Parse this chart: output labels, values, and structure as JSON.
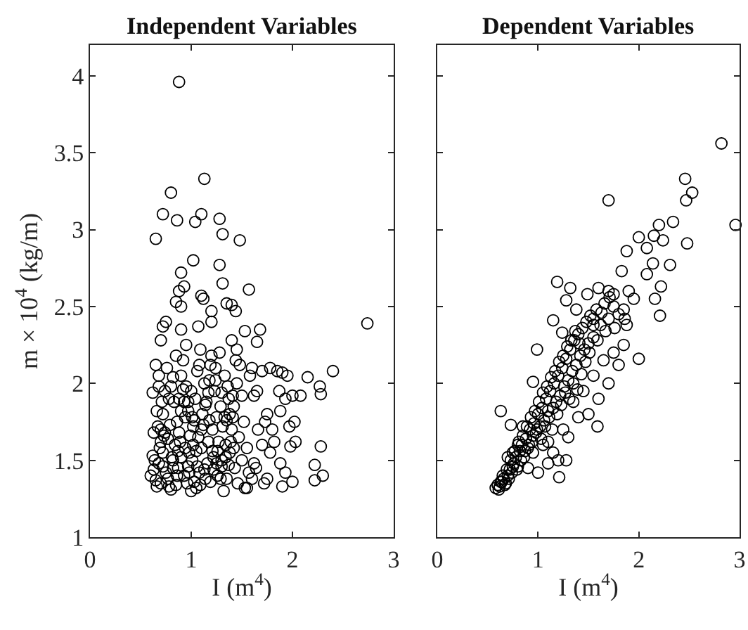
{
  "chart_data": [
    {
      "type": "scatter",
      "title": "Independent Variables",
      "xlabel": "I (m$^{4}$)",
      "ylabel": "m × 10$^{4}$ (kg/m)",
      "xlim": [
        0,
        3
      ],
      "xticks": [
        0,
        1,
        2,
        3
      ],
      "ylim": [
        1,
        4.2
      ],
      "yticks": [
        1,
        1.5,
        2,
        2.5,
        3,
        3.5,
        4
      ],
      "marker": "circle",
      "series": [
        {
          "color": "#000000",
          "x": [
            0.64,
            0.69,
            0.73,
            0.77,
            0.81,
            0.85,
            0.89,
            0.93,
            0.97,
            1.01,
            1.05,
            1.09,
            1.13,
            1.17,
            1.21,
            1.25,
            1.29,
            1.33,
            1.37,
            0.66,
            0.7,
            0.74,
            0.78,
            0.82,
            0.86,
            0.9,
            0.94,
            0.98,
            1.02,
            1.06,
            1.1,
            1.14,
            1.18,
            1.22,
            1.26,
            1.3,
            1.34,
            1.38,
            1.42,
            0.63,
            0.68,
            0.72,
            0.77,
            0.82,
            0.87,
            0.92,
            0.97,
            1.03,
            1.08,
            1.14,
            1.19,
            1.24,
            1.3,
            1.35,
            1.41,
            0.6,
            0.62,
            0.63,
            0.65,
            0.66,
            0.68,
            0.7,
            0.72,
            0.74,
            0.62,
            0.65,
            0.68,
            0.7,
            0.72,
            0.75,
            0.78,
            0.8,
            0.82,
            0.84,
            0.86,
            0.88,
            0.9,
            0.92,
            0.95,
            0.97,
            0.99,
            1.01,
            1.03,
            1.0,
            1.05,
            1.08,
            1.1,
            1.12,
            1.15,
            1.18,
            1.2,
            1.23,
            1.25,
            1.27,
            1.3,
            1.32,
            1.35,
            1.38,
            1.4,
            1.42,
            1.45,
            1.48,
            1.5,
            1.52,
            1.55,
            1.57,
            1.53,
            1.6,
            0.76,
            0.8,
            0.83,
            0.85,
            0.88,
            0.9,
            0.93,
            0.96,
            0.98,
            1.02,
            1.04,
            1.06,
            1.09,
            1.13,
            1.16,
            1.19,
            1.22,
            1.26,
            1.29,
            1.33,
            1.36,
            1.39,
            1.43,
            1.46,
            0.67,
            0.71,
            0.79,
            0.87,
            0.94,
            1.0,
            1.07,
            1.11,
            1.17,
            1.21,
            1.24,
            1.28,
            1.31,
            1.34,
            1.37,
            1.41,
            1.44,
            1.47,
            1.5,
            1.58,
            1.62,
            1.66,
            1.64,
            0.88,
            1.13,
            0.8,
            0.72,
            0.86,
            1.1,
            1.04,
            1.28,
            1.31,
            0.65,
            1.48,
            1.02,
            1.28,
            0.9,
            1.31,
            1.57,
            0.93,
            0.88,
            1.1,
            1.12,
            0.85,
            0.9,
            1.2,
            1.35,
            1.4,
            1.44,
            2.74,
            0.75,
            0.72,
            1.07,
            1.68,
            1.53,
            0.9,
            1.2,
            1.65,
            0.7,
            0.95,
            1.4,
            1.45,
            2.4,
            2.15,
            2.27,
            2.28,
            2.08,
            2.0,
            1.93,
            1.78,
            1.85,
            1.9,
            1.95,
            1.7,
            1.6,
            1.65,
            1.87,
            2.02,
            1.97,
            1.88,
            1.75,
            1.73,
            1.8,
            2.03,
            2.28,
            1.98,
            2.22,
            1.88,
            1.93,
            2.22,
            2.3,
            2.0,
            1.9,
            1.75,
            1.72,
            1.55,
            1.78,
            1.82,
            1.7,
            1.62
          ],
          "values": [
            1.5,
            1.58,
            1.66,
            1.38,
            1.52,
            1.34,
            1.62,
            1.88,
            1.46,
            1.78,
            1.56,
            1.34,
            1.44,
            1.94,
            1.56,
            1.48,
            1.38,
            1.78,
            1.47,
            1.82,
            1.35,
            1.68,
            1.9,
            1.5,
            1.4,
            1.82,
            1.58,
            1.42,
            1.6,
            1.46,
            1.7,
            1.38,
            1.76,
            1.44,
            1.56,
            1.94,
            1.52,
            1.8,
            1.58,
            1.68,
            1.98,
            1.46,
            1.64,
            2.04,
            1.56,
            1.96,
            1.88,
            1.76,
            2.12,
            1.86,
            2.12,
            2.02,
            1.5,
            1.76,
            1.92,
            1.4,
            1.53,
            1.44,
            1.37,
            1.33,
            1.48,
            1.62,
            1.8,
            1.95,
            1.94,
            2.12,
            2.05,
            1.7,
            1.55,
            1.42,
            1.33,
            1.31,
            1.45,
            1.6,
            1.75,
            1.9,
            2.05,
            2.15,
            1.98,
            1.82,
            1.66,
            1.5,
            1.36,
            1.3,
            1.32,
            1.42,
            1.58,
            1.73,
            1.88,
            2.02,
            2.18,
            1.95,
            1.78,
            1.62,
            1.46,
            1.3,
            1.38,
            1.55,
            1.7,
            1.85,
            2.0,
            2.12,
            1.92,
            1.75,
            1.58,
            1.42,
            1.32,
            1.38,
            2.1,
            1.98,
            1.88,
            2.18,
            1.68,
            1.52,
            1.4,
            1.35,
            1.55,
            1.72,
            1.9,
            2.08,
            2.22,
            2.0,
            1.48,
            1.36,
            1.52,
            1.4,
            1.85,
            2.05,
            1.98,
            1.62,
            1.45,
            1.35,
            1.72,
            1.88,
            1.73,
            1.45,
            1.78,
            1.95,
            1.65,
            1.8,
            1.62,
            1.7,
            2.1,
            2.2,
            1.72,
            1.6,
            1.9,
            1.78,
            2.15,
            1.65,
            1.5,
            2.05,
            1.92,
            1.7,
            1.45,
            3.96,
            3.33,
            3.24,
            3.1,
            3.06,
            3.1,
            3.05,
            3.07,
            2.97,
            2.94,
            2.93,
            2.8,
            2.77,
            2.72,
            2.65,
            2.61,
            2.63,
            2.6,
            2.57,
            2.55,
            2.53,
            2.5,
            2.47,
            2.52,
            2.51,
            2.47,
            2.39,
            2.4,
            2.37,
            2.37,
            2.35,
            2.34,
            2.35,
            2.4,
            2.27,
            2.28,
            2.25,
            2.28,
            2.22,
            2.08,
            2.04,
            1.98,
            1.93,
            1.92,
            1.92,
            1.9,
            2.1,
            2.08,
            2.07,
            2.05,
            2.08,
            2.1,
            1.95,
            1.95,
            1.75,
            1.72,
            1.82,
            1.8,
            1.75,
            1.7,
            1.62,
            1.59,
            1.59,
            1.47,
            1.48,
            1.42,
            1.37,
            1.4,
            1.36,
            1.33,
            1.38,
            1.35,
            1.32,
            1.55,
            1.62,
            1.6,
            1.48
          ]
        }
      ]
    },
    {
      "type": "scatter",
      "title": "Dependent Variables",
      "xlabel": "I (m$^{4}$)",
      "xlim": [
        0,
        3
      ],
      "xticks": [
        0,
        1,
        2,
        3
      ],
      "ylim": [
        1,
        4.2
      ],
      "yticks": [
        1,
        1.5,
        2,
        2.5,
        3,
        3.5,
        4
      ],
      "tick_labels": "x",
      "marker": "circle",
      "series": [
        {
          "color": "#000000",
          "x": [
            0.61,
            0.63,
            0.65,
            0.67,
            0.69,
            0.71,
            0.73,
            0.75,
            0.77,
            0.79,
            0.81,
            0.83,
            0.85,
            0.87,
            0.89,
            0.91,
            0.93,
            0.95,
            0.97,
            0.99,
            1.01,
            1.03,
            1.05,
            1.07,
            1.09,
            1.11,
            1.13,
            1.15,
            1.17,
            1.19,
            1.21,
            1.23,
            1.25,
            1.27,
            1.29,
            1.31,
            1.33,
            1.35,
            1.37,
            1.39,
            1.41,
            1.43,
            1.47,
            1.51,
            1.55,
            1.59,
            1.63,
            1.67,
            1.71,
            1.76,
            0.58,
            0.6,
            0.62,
            0.64,
            0.66,
            0.68,
            0.7,
            0.72,
            0.74,
            0.76,
            0.78,
            0.8,
            0.82,
            0.84,
            0.86,
            0.88,
            0.9,
            0.92,
            0.94,
            0.96,
            0.98,
            1.0,
            1.02,
            1.04,
            1.06,
            1.08,
            1.1,
            1.12,
            1.14,
            1.16,
            1.18,
            1.2,
            1.22,
            1.24,
            1.26,
            1.28,
            1.3,
            1.32,
            1.34,
            1.36,
            1.38,
            1.4,
            1.42,
            1.44,
            1.46,
            1.48,
            1.5,
            1.52,
            1.55,
            1.58,
            1.62,
            1.66,
            1.7,
            1.75,
            1.8,
            1.85,
            1.88,
            0.85,
            0.9,
            0.95,
            1.05,
            1.1,
            1.15,
            1.25,
            1.35,
            1.45,
            1.55,
            1.6,
            1.65,
            1.7,
            1.75,
            1.8,
            1.85,
            1.5,
            1.4,
            1.3,
            1.2,
            1.1,
            0.8,
            0.75,
            0.7,
            2.82,
            2.46,
            2.53,
            2.47,
            1.7,
            2.96,
            2.34,
            2.2,
            2.24,
            2.48,
            2.0,
            2.15,
            2.08,
            1.88,
            2.31,
            2.14,
            2.08,
            1.83,
            1.19,
            1.32,
            1.28,
            1.49,
            1.6,
            1.7,
            1.75,
            1.9,
            1.95,
            2.16,
            2.22,
            2.21,
            1.86,
            1.55,
            1.38,
            1.15,
            1.24,
            0.99,
            2.0,
            0.95,
            0.63,
            0.73,
            1.59,
            1.21,
            1.28,
            1.0
          ],
          "values": [
            1.31,
            1.36,
            1.4,
            1.34,
            1.44,
            1.38,
            1.5,
            1.46,
            1.56,
            1.44,
            1.62,
            1.5,
            1.66,
            1.56,
            1.72,
            1.6,
            1.78,
            1.66,
            1.82,
            1.7,
            1.88,
            1.64,
            1.94,
            1.72,
            1.98,
            1.78,
            2.04,
            1.84,
            2.08,
            1.8,
            2.14,
            1.86,
            2.18,
            1.94,
            2.24,
            1.9,
            2.28,
            2.0,
            2.34,
            1.96,
            2.26,
            2.06,
            2.14,
            2.2,
            2.38,
            2.28,
            2.46,
            2.34,
            2.56,
            2.36,
            1.32,
            1.34,
            1.33,
            1.36,
            1.38,
            1.35,
            1.4,
            1.44,
            1.42,
            1.48,
            1.52,
            1.46,
            1.56,
            1.6,
            1.52,
            1.64,
            1.58,
            1.7,
            1.62,
            1.74,
            1.68,
            1.8,
            1.72,
            1.84,
            1.76,
            1.9,
            1.82,
            1.95,
            1.7,
            2.0,
            1.88,
            2.05,
            1.92,
            2.1,
            1.98,
            2.16,
            2.02,
            2.22,
            2.08,
            2.28,
            2.12,
            2.32,
            2.18,
            2.36,
            2.22,
            2.4,
            2.26,
            2.44,
            2.3,
            2.48,
            2.38,
            2.52,
            2.42,
            2.5,
            2.45,
            2.48,
            2.38,
            1.72,
            1.45,
            1.55,
            1.6,
            1.62,
            1.55,
            1.7,
            1.88,
            1.95,
            2.05,
            1.9,
            2.15,
            2.0,
            2.2,
            2.12,
            2.25,
            1.8,
            1.78,
            1.65,
            1.5,
            1.48,
            1.6,
            1.55,
            1.52,
            3.56,
            3.33,
            3.24,
            3.19,
            3.19,
            3.03,
            3.05,
            3.03,
            2.93,
            2.91,
            2.95,
            2.96,
            2.88,
            2.86,
            2.77,
            2.78,
            2.71,
            2.73,
            2.66,
            2.62,
            2.54,
            2.58,
            2.62,
            2.6,
            2.58,
            2.6,
            2.55,
            2.55,
            2.63,
            2.44,
            2.42,
            2.42,
            2.48,
            2.41,
            2.33,
            2.22,
            2.16,
            2.01,
            1.82,
            1.73,
            1.72,
            1.39,
            1.5,
            1.42
          ]
        }
      ]
    }
  ]
}
